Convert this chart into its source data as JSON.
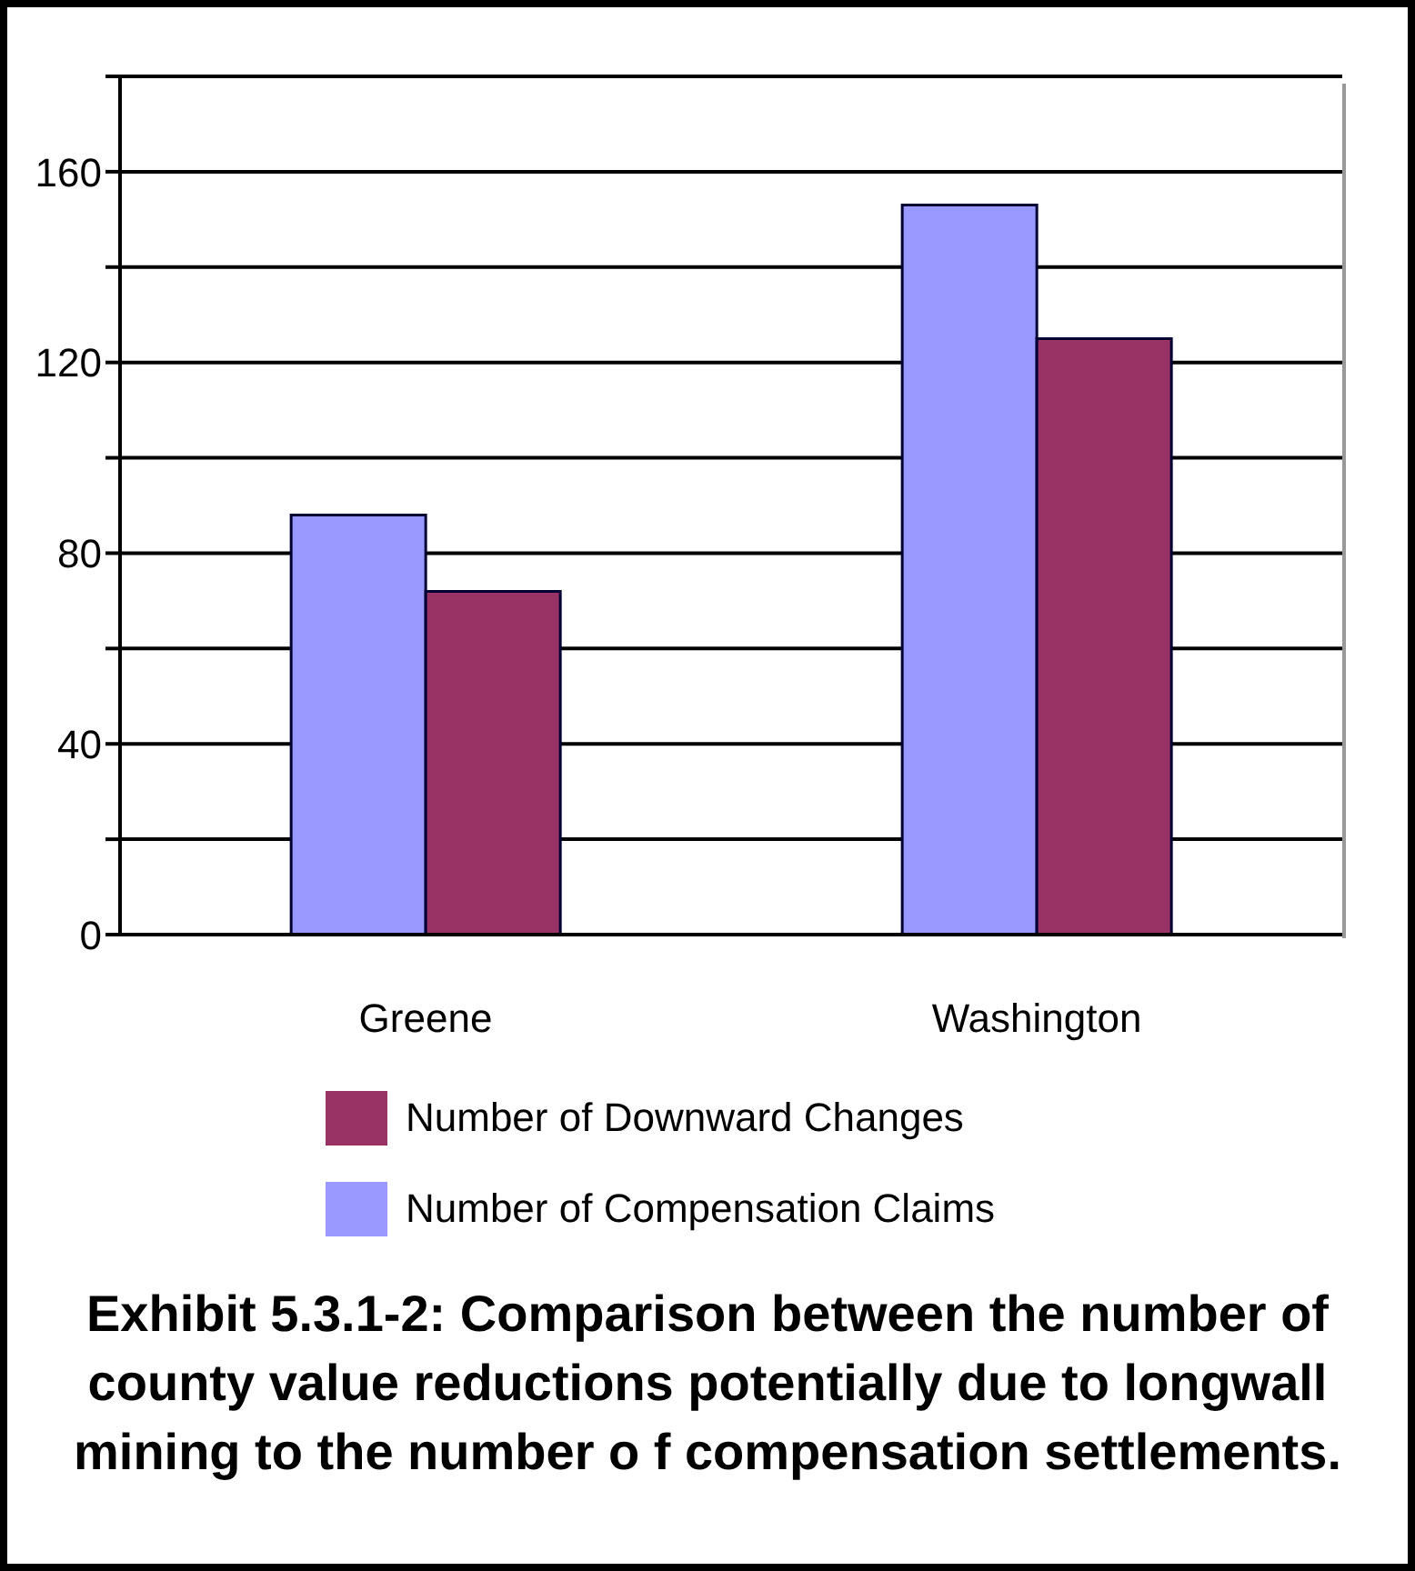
{
  "chart_data": {
    "type": "bar",
    "title": "Exhibit 5.3.1-2:  Comparison between the number of county value reductions potentially due to longwall mining to the number o f compensation settlements.",
    "categories": [
      "Greene",
      "Washington"
    ],
    "series": [
      {
        "name": "Number of Compensation Claims",
        "color": "#9999ff",
        "values": [
          88,
          153
        ]
      },
      {
        "name": "Number of Downward Changes",
        "color": "#993366",
        "values": [
          72,
          125
        ]
      }
    ],
    "ylim": [
      0,
      180
    ],
    "yticks": [
      0,
      {
        "value": 20,
        "label": null
      },
      40,
      {
        "value": 60,
        "label": null
      },
      80,
      {
        "value": 100,
        "label": null
      },
      120,
      {
        "value": 140,
        "label": null
      },
      160,
      {
        "value": 180,
        "label": null
      }
    ],
    "grid": "y",
    "legend": "bottom"
  }
}
